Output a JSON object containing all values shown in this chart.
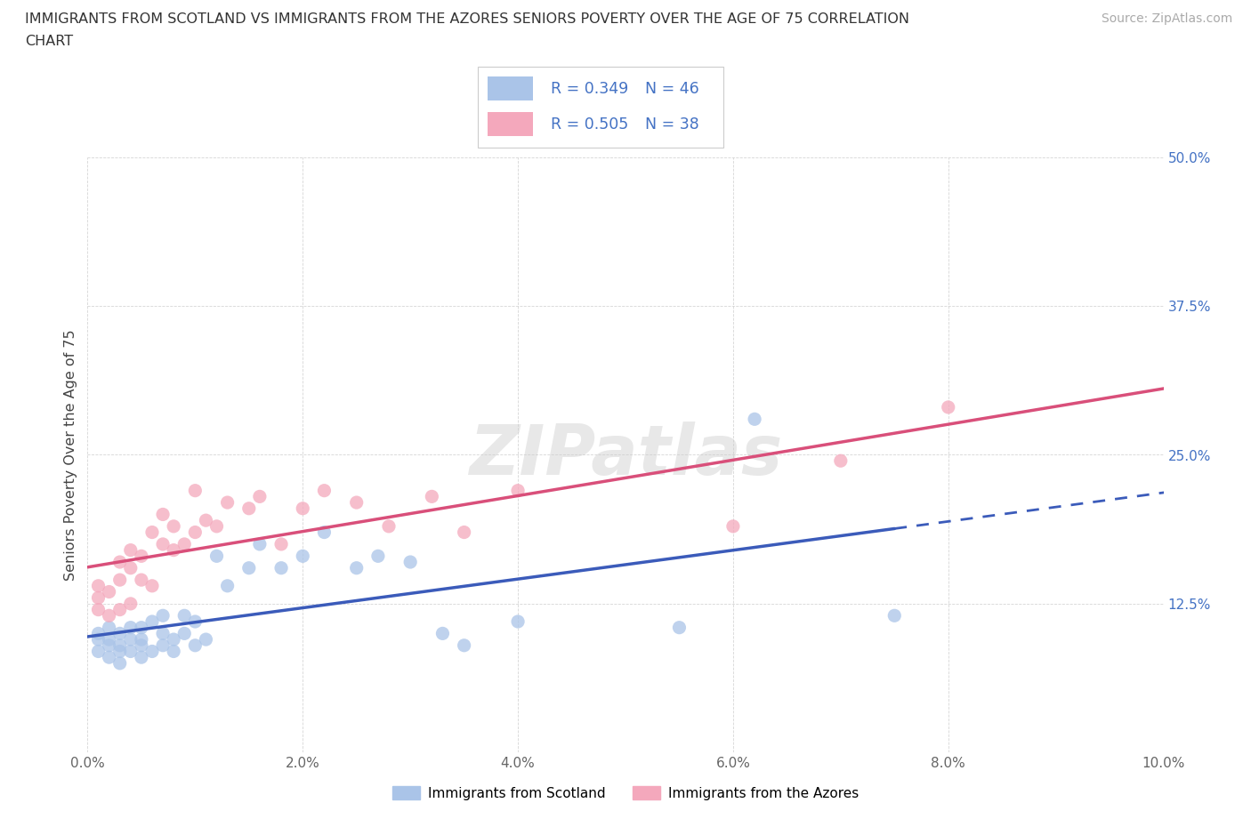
{
  "title_line1": "IMMIGRANTS FROM SCOTLAND VS IMMIGRANTS FROM THE AZORES SENIORS POVERTY OVER THE AGE OF 75 CORRELATION",
  "title_line2": "CHART",
  "source": "Source: ZipAtlas.com",
  "ylabel": "Seniors Poverty Over the Age of 75",
  "xlim": [
    0.0,
    0.1
  ],
  "ylim": [
    0.0,
    0.5
  ],
  "xticks": [
    0.0,
    0.02,
    0.04,
    0.06,
    0.08,
    0.1
  ],
  "yticks": [
    0.0,
    0.125,
    0.25,
    0.375,
    0.5
  ],
  "xticklabels": [
    "0.0%",
    "2.0%",
    "4.0%",
    "6.0%",
    "8.0%",
    "10.0%"
  ],
  "yticklabels": [
    "",
    "12.5%",
    "25.0%",
    "37.5%",
    "50.0%"
  ],
  "scotland_color": "#aac4e8",
  "azores_color": "#f4a8bc",
  "scotland_line_color": "#3b5bba",
  "azores_line_color": "#d94f7a",
  "tick_label_color": "#4472c4",
  "R_scotland": 0.349,
  "N_scotland": 46,
  "R_azores": 0.505,
  "N_azores": 38,
  "legend_label_scotland": "Immigrants from Scotland",
  "legend_label_azores": "Immigrants from the Azores",
  "watermark": "ZIPatlas",
  "scotland_x": [
    0.001,
    0.001,
    0.001,
    0.002,
    0.002,
    0.002,
    0.002,
    0.003,
    0.003,
    0.003,
    0.003,
    0.004,
    0.004,
    0.004,
    0.005,
    0.005,
    0.005,
    0.005,
    0.006,
    0.006,
    0.007,
    0.007,
    0.007,
    0.008,
    0.008,
    0.009,
    0.009,
    0.01,
    0.01,
    0.011,
    0.012,
    0.013,
    0.015,
    0.016,
    0.018,
    0.02,
    0.022,
    0.025,
    0.027,
    0.03,
    0.033,
    0.035,
    0.04,
    0.055,
    0.062,
    0.075
  ],
  "scotland_y": [
    0.085,
    0.095,
    0.1,
    0.08,
    0.09,
    0.095,
    0.105,
    0.075,
    0.085,
    0.09,
    0.1,
    0.085,
    0.095,
    0.105,
    0.08,
    0.09,
    0.095,
    0.105,
    0.085,
    0.11,
    0.09,
    0.1,
    0.115,
    0.085,
    0.095,
    0.1,
    0.115,
    0.09,
    0.11,
    0.095,
    0.165,
    0.14,
    0.155,
    0.175,
    0.155,
    0.165,
    0.185,
    0.155,
    0.165,
    0.16,
    0.1,
    0.09,
    0.11,
    0.105,
    0.28,
    0.115
  ],
  "azores_x": [
    0.001,
    0.001,
    0.001,
    0.002,
    0.002,
    0.003,
    0.003,
    0.003,
    0.004,
    0.004,
    0.004,
    0.005,
    0.005,
    0.006,
    0.006,
    0.007,
    0.007,
    0.008,
    0.008,
    0.009,
    0.01,
    0.01,
    0.011,
    0.012,
    0.013,
    0.015,
    0.016,
    0.018,
    0.02,
    0.022,
    0.025,
    0.028,
    0.032,
    0.035,
    0.04,
    0.06,
    0.07,
    0.08
  ],
  "azores_y": [
    0.12,
    0.13,
    0.14,
    0.115,
    0.135,
    0.12,
    0.145,
    0.16,
    0.125,
    0.155,
    0.17,
    0.145,
    0.165,
    0.14,
    0.185,
    0.175,
    0.2,
    0.17,
    0.19,
    0.175,
    0.185,
    0.22,
    0.195,
    0.19,
    0.21,
    0.205,
    0.215,
    0.175,
    0.205,
    0.22,
    0.21,
    0.19,
    0.215,
    0.185,
    0.22,
    0.19,
    0.245,
    0.29
  ]
}
